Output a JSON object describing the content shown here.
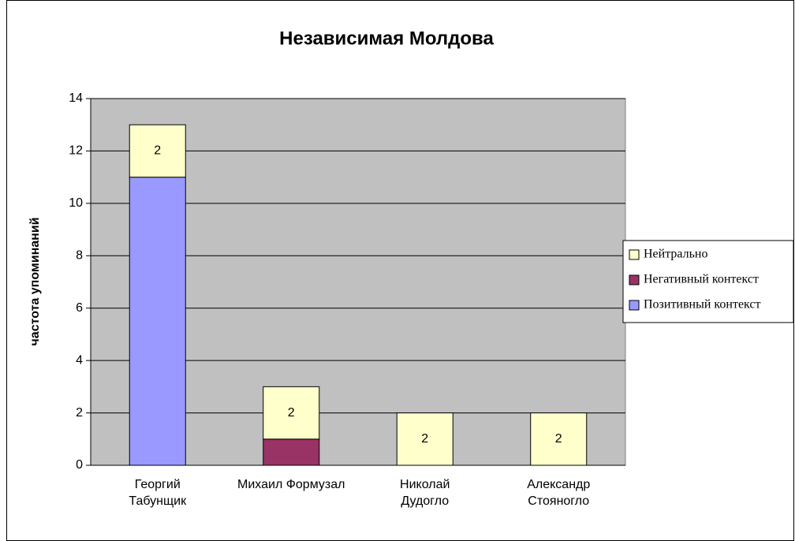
{
  "chart_data": {
    "type": "stacked_bar",
    "title": "Независимая Молдова",
    "y_label": "частота упоминаний",
    "categories": [
      "Георгий\nТабунщик",
      "Михаил Формузал",
      "Николай\nДудогло",
      "Александр\nСтояногло"
    ],
    "series": [
      {
        "name": "Позитивный контекст",
        "color": "#9999ff",
        "values": [
          11,
          0,
          0,
          0
        ]
      },
      {
        "name": "Негативный контекст",
        "color": "#993366",
        "values": [
          0,
          1,
          0,
          0
        ]
      },
      {
        "name": "Нейтрально",
        "color": "#ffffcc",
        "values": [
          2,
          2,
          2,
          2
        ],
        "show_labels": true
      }
    ],
    "ylim": [
      0,
      14
    ],
    "yticks": [
      0,
      2,
      4,
      6,
      8,
      10,
      12,
      14
    ],
    "grid": true,
    "legend": "right",
    "plot_background": "#c0c0c0"
  }
}
